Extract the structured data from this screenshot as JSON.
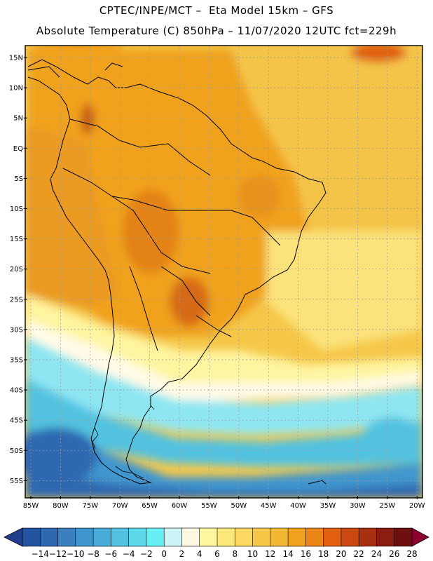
{
  "title_line1": "CPTEC/INPE/MCT –  Eta Model 15km – GFS",
  "title_line2": "Absolute Temperature (C) 850hPa – 11/07/2020 12UTC fct=229h",
  "lat_labels": [
    "15N",
    "10N",
    "5N",
    "EQ",
    "5S",
    "10S",
    "15S",
    "20S",
    "25S",
    "30S",
    "35S",
    "40S",
    "45S",
    "50S",
    "55S"
  ],
  "lon_labels": [
    "85W",
    "80W",
    "75W",
    "70W",
    "65W",
    "60W",
    "55W",
    "50W",
    "45W",
    "40W",
    "35W",
    "30W",
    "25W",
    "20W"
  ],
  "colorbar": {
    "labels": [
      "-14",
      "-12",
      "-10",
      "-8",
      "-6",
      "-4",
      "-2",
      "0",
      "2",
      "4",
      "6",
      "8",
      "10",
      "12",
      "14",
      "16",
      "18",
      "20",
      "22",
      "24",
      "26",
      "28"
    ],
    "colors": [
      "#1f3e8c",
      "#2453a0",
      "#2f68b0",
      "#3a80c0",
      "#3f96ce",
      "#48acd8",
      "#52c2e0",
      "#5cd8ea",
      "#66f0f5",
      "#cdf5f8",
      "#fff8e0",
      "#fff6a0",
      "#fbe878",
      "#f8d860",
      "#f5c84a",
      "#f2b834",
      "#f0a21e",
      "#eb8518",
      "#e06010",
      "#c84810",
      "#a83010",
      "#8a1c10",
      "#6e1010",
      "#8c0030"
    ],
    "min_color": "#1f3e8c",
    "max_color": "#8c0030"
  },
  "field_colors": {
    "deep_blue": "#2f68b0",
    "mid_blue": "#3f96ce",
    "cyan": "#52c2e0",
    "light_cyan": "#8ee6f2",
    "pale_yellow": "#fff6a0",
    "yellow": "#fbe878",
    "gold": "#f5c84a",
    "orange": "#f0a21e",
    "dark_orange": "#e07a14",
    "red": "#c84810",
    "coast": "#000000"
  }
}
